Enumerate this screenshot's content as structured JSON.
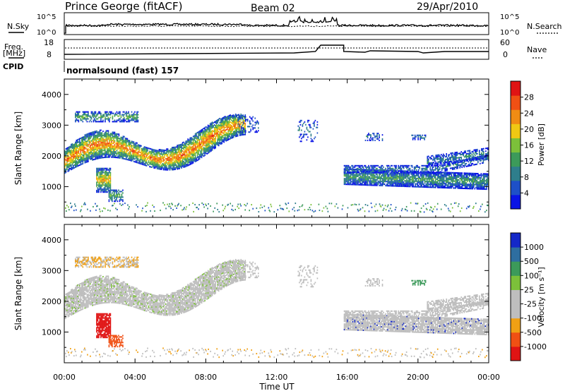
{
  "header": {
    "station": "Prince George (fitACF)",
    "beam": "Beam 02",
    "date": "29/Apr/2010"
  },
  "top_panels": {
    "nsky_label": "N.Sky",
    "nsearch_label": "N.Search",
    "noise_ticks_left": [
      "10^5",
      "10^0"
    ],
    "noise_ticks_right": [
      "10^5",
      "10^0"
    ],
    "freq_label_1": "Freq.",
    "freq_label_2": "[MHz]",
    "freq_ticks": [
      "18",
      "8"
    ],
    "nave_label": "Nave",
    "nave_ticks": [
      "60",
      "0"
    ],
    "cpid_label": "CPID",
    "cpid_text": "normalsound (fast) 157"
  },
  "colors": {
    "power": [
      "#0a14e6",
      "#1e50c8",
      "#2e7e8c",
      "#3c9a5a",
      "#7cc03a",
      "#f0c814",
      "#f08c14",
      "#f05014",
      "#e01414"
    ],
    "velocity": [
      "#e01414",
      "#f05014",
      "#f0a014",
      "#bebebe",
      "#bebebe",
      "#7cc03a",
      "#3c9a5a",
      "#2e6ea0",
      "#1428c8"
    ]
  },
  "chart_data": [
    {
      "type": "heatmap",
      "title": "",
      "xlabel": "Time UT",
      "ylabel": "Slant Range [km]",
      "xlim": [
        "00:00",
        "24:00"
      ],
      "ylim": [
        0,
        4500
      ],
      "x_ticks": [
        "00:00",
        "04:00",
        "08:00",
        "12:00",
        "16:00",
        "20:00",
        "00:00"
      ],
      "y_ticks": [
        "1000",
        "2000",
        "3000",
        "4000"
      ],
      "colorbar": {
        "label": "Power [dB]",
        "ticks": [
          "4",
          "8",
          "12",
          "16",
          "20",
          "24",
          "28"
        ],
        "range": [
          0,
          30
        ]
      }
    },
    {
      "type": "heatmap",
      "title": "",
      "xlabel": "Time UT",
      "ylabel": "Slant Range [km]",
      "xlim": [
        "00:00",
        "24:00"
      ],
      "ylim": [
        0,
        4500
      ],
      "x_ticks": [
        "00:00",
        "04:00",
        "08:00",
        "12:00",
        "16:00",
        "20:00",
        "00:00"
      ],
      "y_ticks": [
        "1000",
        "2000",
        "3000",
        "4000"
      ],
      "colorbar": {
        "label": "Velocity [m s⁻¹]",
        "ticks": [
          "1000",
          "500",
          "100",
          "25",
          "-25",
          "-100",
          "-500",
          "-1000"
        ],
        "range": [
          -1000,
          1000
        ]
      }
    }
  ]
}
